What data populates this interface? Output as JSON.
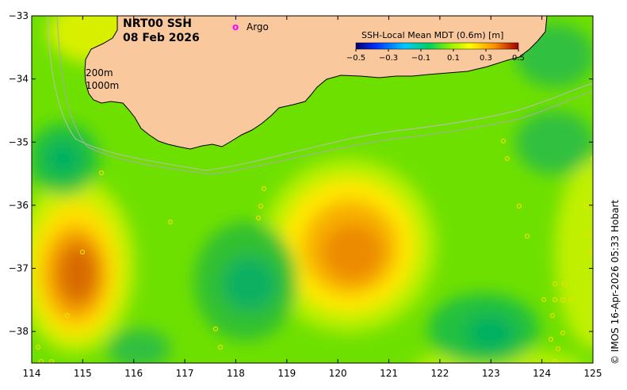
{
  "title": {
    "product": "NRT00 SSH",
    "date": "08 Feb 2026"
  },
  "legend": {
    "argo_symbol": "o",
    "argo_label": "Argo",
    "argo_color": "#ff00ff",
    "colorbar_title": "SSH-Local Mean MDT (0.6m) [m]",
    "colorbar_ticks": [
      "−0.5",
      "−0.3",
      "−0.1",
      "0.1",
      "0.3",
      "0.5"
    ],
    "colorbar_range": [
      -0.5,
      0.5
    ]
  },
  "contours": {
    "shelf_200": "200m",
    "shelf_1000": "1000m"
  },
  "axes": {
    "lon_ticks": [
      "114",
      "115",
      "116",
      "117",
      "118",
      "119",
      "120",
      "121",
      "122",
      "123",
      "124",
      "125"
    ],
    "lat_ticks": [
      "−33",
      "−34",
      "−35",
      "−36",
      "−37",
      "−38"
    ],
    "lon_range": [
      114,
      125
    ],
    "lat_range": [
      -38.5,
      -33
    ]
  },
  "credit": "© IMOS 16-Apr-2026 05:33 Hobart",
  "colors": {
    "land": "#f9c89c",
    "high": "#d95f02",
    "mid": "#7fe600",
    "low": "#00b070"
  }
}
